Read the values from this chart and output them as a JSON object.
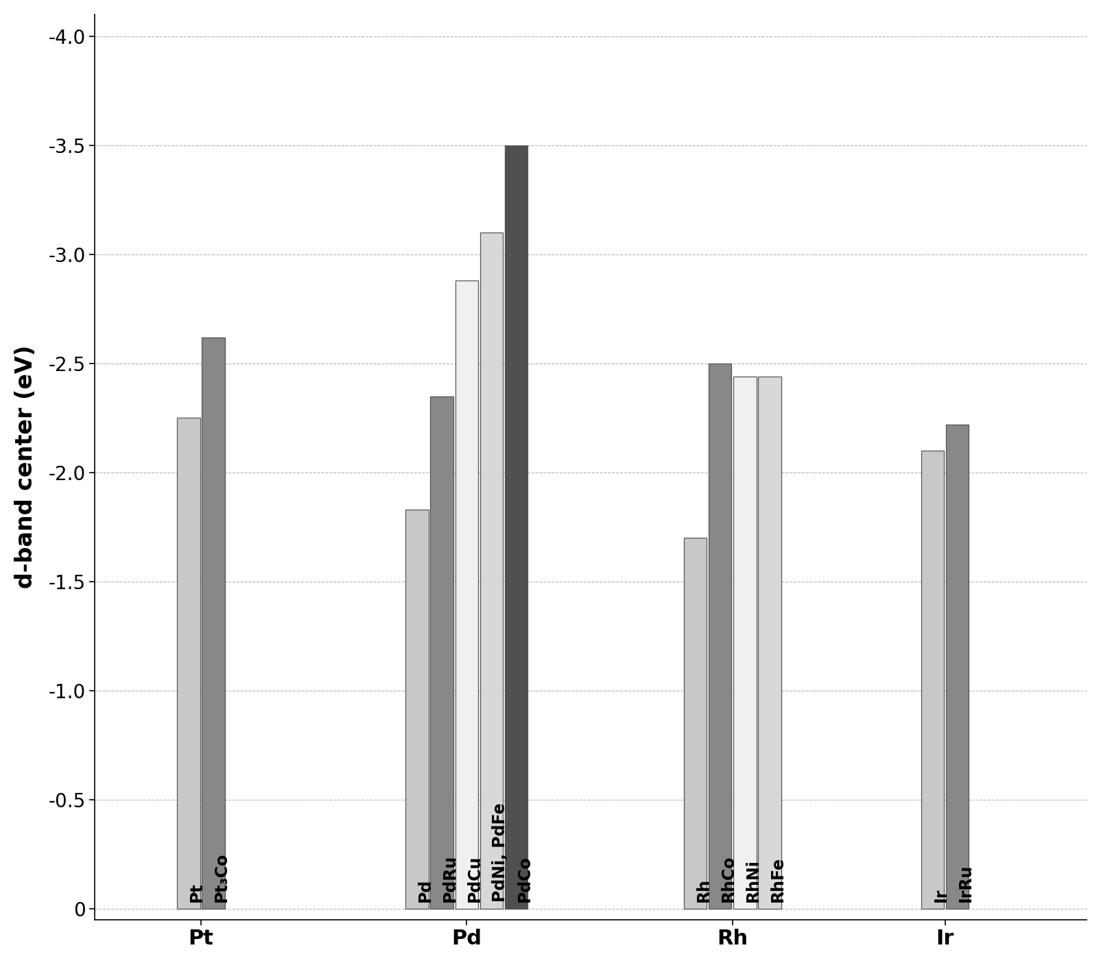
{
  "groups": [
    {
      "x_label": "Pt",
      "bars": [
        {
          "label": "Pt",
          "value": -2.25,
          "color": "#c8c8c8"
        },
        {
          "label": "Pt₃Co",
          "value": -2.62,
          "color": "#888888"
        }
      ]
    },
    {
      "x_label": "Pd",
      "bars": [
        {
          "label": "Pd",
          "value": -1.83,
          "color": "#c8c8c8"
        },
        {
          "label": "PdRu",
          "value": -2.35,
          "color": "#888888"
        },
        {
          "label": "PdCu",
          "value": -2.88,
          "color": "#f0f0f0"
        },
        {
          "label": "PdNi, PdFe",
          "value": -3.1,
          "color": "#d8d8d8"
        },
        {
          "label": "PdCo",
          "value": -3.5,
          "color": "#505050"
        }
      ]
    },
    {
      "x_label": "Rh",
      "bars": [
        {
          "label": "Rh",
          "value": -1.7,
          "color": "#c8c8c8"
        },
        {
          "label": "RhCo",
          "value": -2.5,
          "color": "#888888"
        },
        {
          "label": "RhNi",
          "value": -2.44,
          "color": "#f0f0f0"
        },
        {
          "label": "RhFe",
          "value": -2.44,
          "color": "#d8d8d8"
        }
      ]
    },
    {
      "x_label": "Ir",
      "bars": [
        {
          "label": "Ir",
          "value": -2.1,
          "color": "#c8c8c8"
        },
        {
          "label": "IrRu",
          "value": -2.22,
          "color": "#888888"
        }
      ]
    }
  ],
  "ylabel": "d-band center (eV)",
  "yticks": [
    0,
    -0.5,
    -1.0,
    -1.5,
    -2.0,
    -2.5,
    -3.0,
    -3.5,
    -4.0
  ],
  "ymin": -4.1,
  "ymax": 0.05,
  "background_color": "#ffffff",
  "grid_color": "#aaaaaa",
  "label_fontsize": 22,
  "tick_fontsize": 20,
  "bar_label_fontsize": 17,
  "bar_width": 0.13,
  "bar_spacing": 0.01,
  "group_positions": [
    1.0,
    2.5,
    4.0,
    5.2
  ],
  "xlim_left": 0.4,
  "xlim_right": 6.0
}
